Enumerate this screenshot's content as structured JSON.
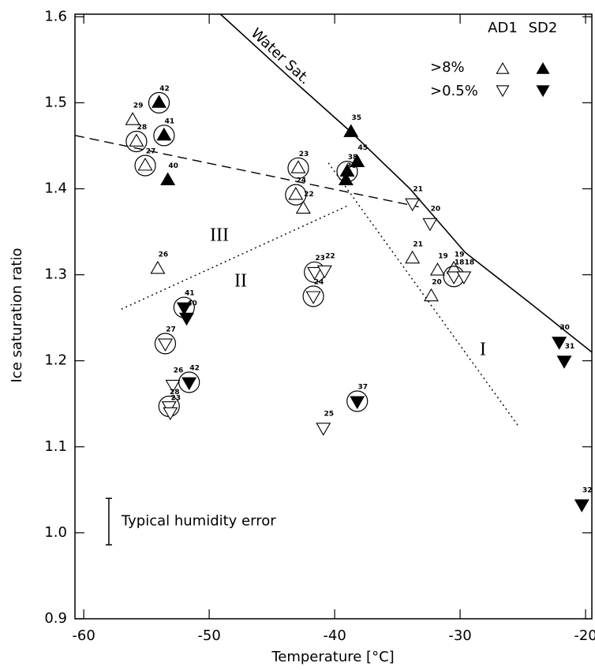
{
  "chart_data": {
    "type": "scatter",
    "x_label": "Temperature [°C]",
    "y_label": "Ice saturation ratio",
    "xlim": [
      -60.7,
      -19.5
    ],
    "ylim": [
      0.9,
      1.603
    ],
    "xticks": [
      -60,
      -50,
      -40,
      -30,
      -20
    ],
    "yticks": [
      0.9,
      {
        "value": 1,
        "label": "1.0"
      },
      1.1,
      1.2,
      1.3,
      1.4,
      1.5,
      1.6
    ],
    "legend": {
      "columns": [
        "AD1",
        "SD2"
      ],
      "rows": [
        ">8%",
        ">0.5%"
      ]
    },
    "series": [
      {
        "marker": "triangle-up",
        "filled": false,
        "color": "#000000",
        "x": [
          -56.1,
          -55.8,
          -55.1,
          -54.1,
          -42.9,
          -43.1,
          -42.5,
          -33.8,
          -31.8,
          -32.3,
          -30.5
        ],
        "values": [
          1.48,
          1.455,
          1.427,
          1.307,
          1.424,
          1.393,
          1.377,
          1.319,
          1.305,
          1.275,
          1.307
        ],
        "circled": [
          false,
          true,
          true,
          false,
          true,
          true,
          false,
          false,
          false,
          false,
          false
        ],
        "point_labels": [
          29,
          28,
          27,
          26,
          23,
          24,
          22,
          21,
          19,
          20,
          19
        ]
      },
      {
        "marker": "triangle-up",
        "filled": true,
        "color": "#000000",
        "x": [
          -54.0,
          -53.6,
          -53.3,
          -38.7,
          -39.0,
          -38.2,
          -39.1
        ],
        "values": [
          1.5,
          1.462,
          1.41,
          1.466,
          1.42,
          1.431,
          1.41
        ],
        "circled": [
          true,
          true,
          false,
          false,
          true,
          false,
          false
        ],
        "point_labels": [
          42,
          41,
          40,
          35,
          38,
          45,
          36
        ]
      },
      {
        "marker": "triangle-down",
        "filled": false,
        "color": "#000000",
        "x": [
          -33.8,
          -32.4,
          -41.6,
          -40.8,
          -41.7,
          -53.5,
          -52.9,
          -53.2,
          -53.1,
          -40.9,
          -30.5,
          -29.7
        ],
        "values": [
          1.383,
          1.36,
          1.303,
          1.305,
          1.275,
          1.22,
          1.172,
          1.147,
          1.14,
          1.122,
          1.298,
          1.298
        ],
        "circled": [
          false,
          false,
          true,
          false,
          true,
          true,
          false,
          true,
          false,
          false,
          true,
          false
        ],
        "point_labels": [
          21,
          20,
          23,
          22,
          24,
          27,
          26,
          28,
          23,
          25,
          18,
          18
        ]
      },
      {
        "marker": "triangle-down",
        "filled": true,
        "color": "#000000",
        "x": [
          -52.0,
          -51.8,
          -51.6,
          -38.2,
          -22.1,
          -21.7,
          -20.3
        ],
        "values": [
          1.262,
          1.25,
          1.175,
          1.153,
          1.222,
          1.2,
          1.033
        ],
        "circled": [
          true,
          false,
          true,
          true,
          false,
          false,
          false
        ],
        "point_labels": [
          41,
          40,
          42,
          37,
          30,
          31,
          32
        ]
      }
    ],
    "lines": [
      {
        "name": "Water Sat.",
        "style": "solid",
        "x": [
          -49.1,
          -44,
          -38.7,
          -34,
          -29.6,
          -24.5,
          -19.5
        ],
        "values": [
          1.603,
          1.535,
          1.466,
          1.4,
          1.326,
          1.268,
          1.21
        ]
      },
      {
        "style": "dashed",
        "x": [
          -60.7,
          -33.3
        ],
        "values": [
          1.462,
          1.379
        ]
      },
      {
        "style": "dotted",
        "x": [
          -57,
          -39
        ],
        "values": [
          1.26,
          1.38
        ]
      },
      {
        "style": "dotted",
        "x": [
          -40.5,
          -25.3
        ],
        "values": [
          1.43,
          1.123
        ]
      }
    ],
    "annotations": [
      "I",
      "II",
      "III"
    ],
    "error_bar": {
      "x": -58,
      "low": 0.986,
      "high": 1.04,
      "label": "Typical humidity error"
    }
  }
}
